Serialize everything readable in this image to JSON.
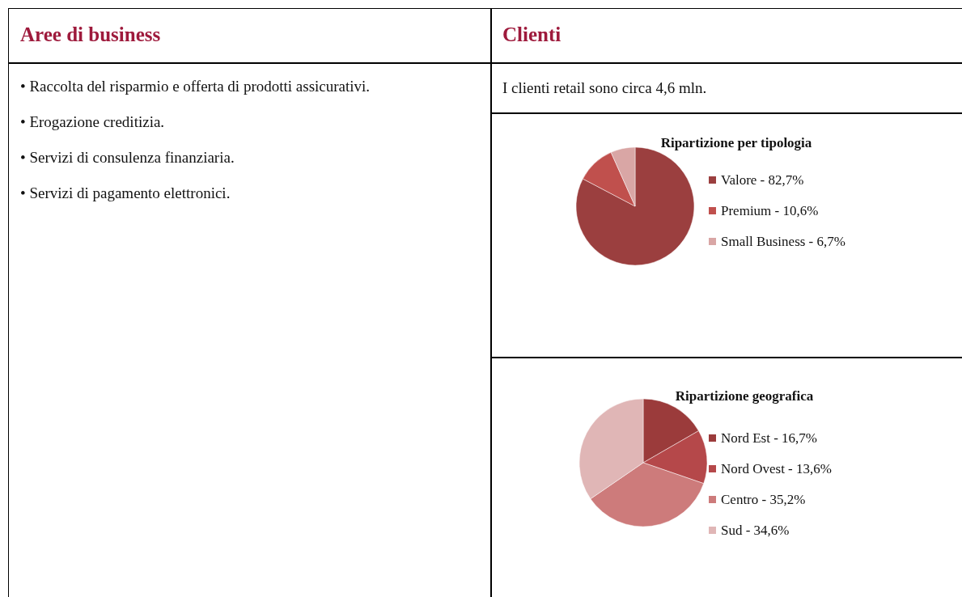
{
  "chart_data": [
    {
      "type": "other",
      "title": "Aree di business",
      "annotations": [
        "• Raccolta del risparmio e offerta di prodotti assicurativi.",
        "• Erogazione creditizia.",
        "• Servizi di consulenza finanziaria.",
        "• Servizi di pagamento elettronici."
      ]
    },
    {
      "type": "other",
      "title": "Clienti",
      "annotations": [
        "I clienti retail sono circa 4,6 mln."
      ]
    },
    {
      "type": "pie",
      "title": "Ripartizione per tipologia",
      "categories": [
        "Valore - 82,7%",
        "Premium - 10,6%",
        "Small Business - 6,7%"
      ],
      "values": [
        82.7,
        10.6,
        6.7
      ],
      "colors": [
        "#9b3f3f",
        "#c0504d",
        "#d9a6a5"
      ],
      "legend": "right"
    },
    {
      "type": "pie",
      "title": "Ripartizione geografica",
      "categories": [
        "Nord Est - 16,7%",
        "Nord Ovest - 13,6%",
        "Centro - 35,2%",
        "Sud - 34,6%"
      ],
      "values": [
        16.7,
        13.6,
        35.2,
        34.6
      ],
      "colors": [
        "#9b3b3b",
        "#b5484a",
        "#cd7b7b",
        "#e0b6b6"
      ],
      "legend": "right"
    }
  ]
}
